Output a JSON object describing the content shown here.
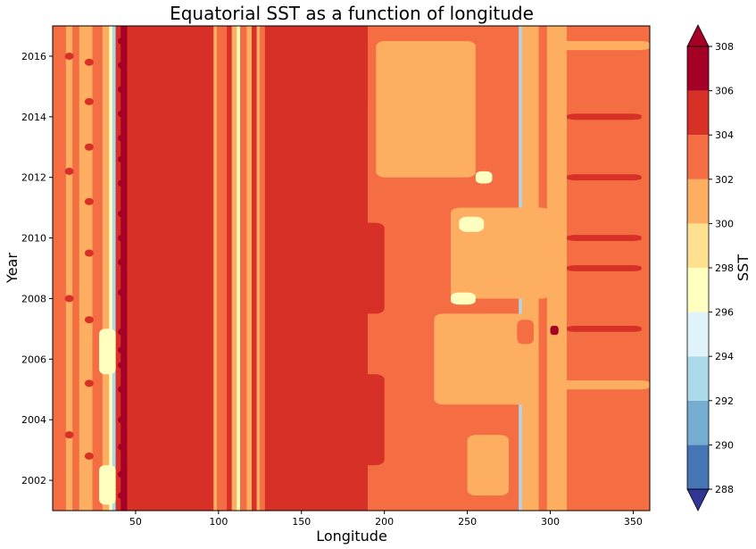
{
  "chart_data": {
    "type": "heatmap",
    "title": "Equatorial SST as a function of longitude",
    "xlabel": "Longitude",
    "ylabel": "Year",
    "xlim": [
      0,
      360
    ],
    "ylim": [
      2001,
      2017
    ],
    "xticks": [
      50,
      100,
      150,
      200,
      250,
      300,
      350
    ],
    "yticks": [
      2002,
      2004,
      2006,
      2008,
      2010,
      2012,
      2014,
      2016
    ],
    "colorbar": {
      "label": "SST",
      "levels": [
        288,
        290,
        292,
        294,
        296,
        298,
        300,
        302,
        304,
        306,
        308
      ],
      "colors": [
        "#313695",
        "#4575b4",
        "#74add1",
        "#abd9e9",
        "#e0f3f8",
        "#ffffbf",
        "#fee090",
        "#fdae61",
        "#f46d43",
        "#d73027",
        "#a50026"
      ],
      "extend": "both"
    },
    "bands": [
      {
        "x0": 0,
        "x1": 8,
        "level": 302
      },
      {
        "x0": 8,
        "x1": 12,
        "level": 300
      },
      {
        "x0": 12,
        "x1": 16,
        "level": 302
      },
      {
        "x0": 16,
        "x1": 24,
        "level": 300
      },
      {
        "x0": 24,
        "x1": 30,
        "level": 302
      },
      {
        "x0": 30,
        "x1": 34,
        "level": 300
      },
      {
        "x0": 34,
        "x1": 36,
        "level": 296
      },
      {
        "x0": 36,
        "x1": 38,
        "level": 292
      },
      {
        "x0": 38,
        "x1": 41,
        "level": 304
      },
      {
        "x0": 41,
        "x1": 45,
        "level": 306
      },
      {
        "x0": 45,
        "x1": 97,
        "level": 304
      },
      {
        "x0": 97,
        "x1": 99,
        "level": 300
      },
      {
        "x0": 99,
        "x1": 105,
        "level": 302
      },
      {
        "x0": 105,
        "x1": 108,
        "level": 304
      },
      {
        "x0": 108,
        "x1": 111,
        "level": 300
      },
      {
        "x0": 111,
        "x1": 113,
        "level": 296
      },
      {
        "x0": 113,
        "x1": 117,
        "level": 302
      },
      {
        "x0": 117,
        "x1": 120,
        "level": 300
      },
      {
        "x0": 120,
        "x1": 123,
        "level": 304
      },
      {
        "x0": 123,
        "x1": 125,
        "level": 300
      },
      {
        "x0": 125,
        "x1": 128,
        "level": 302
      },
      {
        "x0": 128,
        "x1": 190,
        "level": 304
      },
      {
        "x0": 190,
        "x1": 240,
        "level": 302
      },
      {
        "x0": 240,
        "x1": 265,
        "level": 302
      },
      {
        "x0": 265,
        "x1": 281,
        "level": 302
      },
      {
        "x0": 281,
        "x1": 283,
        "level": 292
      },
      {
        "x0": 283,
        "x1": 293,
        "level": 300
      },
      {
        "x0": 293,
        "x1": 298,
        "level": 302
      },
      {
        "x0": 298,
        "x1": 310,
        "level": 300
      },
      {
        "x0": 310,
        "x1": 360,
        "level": 302
      }
    ],
    "patches": [
      {
        "x0": 195,
        "x1": 255,
        "y0": 2012.0,
        "y1": 2016.5,
        "level": 300
      },
      {
        "x0": 240,
        "x1": 300,
        "y0": 2008.0,
        "y1": 2011.0,
        "level": 300
      },
      {
        "x0": 230,
        "x1": 290,
        "y0": 2004.5,
        "y1": 2007.5,
        "level": 300
      },
      {
        "x0": 250,
        "x1": 275,
        "y0": 2001.5,
        "y1": 2003.5,
        "level": 300
      },
      {
        "x0": 245,
        "x1": 260,
        "y0": 2010.2,
        "y1": 2010.7,
        "level": 296
      },
      {
        "x0": 255,
        "x1": 265,
        "y0": 2011.8,
        "y1": 2012.2,
        "level": 296
      },
      {
        "x0": 240,
        "x1": 255,
        "y0": 2007.8,
        "y1": 2008.2,
        "level": 296
      },
      {
        "x0": 160,
        "x1": 190,
        "y0": 2014.2,
        "y1": 2016.8,
        "level": 304
      },
      {
        "x0": 160,
        "x1": 200,
        "y0": 2007.5,
        "y1": 2010.5,
        "level": 304
      },
      {
        "x0": 160,
        "x1": 200,
        "y0": 2002.5,
        "y1": 2005.5,
        "level": 304
      },
      {
        "x0": 310,
        "x1": 355,
        "y0": 2013.9,
        "y1": 2014.1,
        "level": 304
      },
      {
        "x0": 310,
        "x1": 355,
        "y0": 2011.9,
        "y1": 2012.1,
        "level": 304
      },
      {
        "x0": 310,
        "x1": 355,
        "y0": 2009.9,
        "y1": 2010.1,
        "level": 304
      },
      {
        "x0": 310,
        "x1": 355,
        "y0": 2008.9,
        "y1": 2009.1,
        "level": 304
      },
      {
        "x0": 310,
        "x1": 355,
        "y0": 2006.9,
        "y1": 2007.1,
        "level": 304
      },
      {
        "x0": 305,
        "x1": 360,
        "y0": 2016.2,
        "y1": 2016.5,
        "level": 300
      },
      {
        "x0": 305,
        "x1": 360,
        "y0": 2005.0,
        "y1": 2005.3,
        "level": 300
      },
      {
        "x0": 28,
        "x1": 38,
        "y0": 2005.5,
        "y1": 2007.0,
        "level": 296
      },
      {
        "x0": 28,
        "x1": 38,
        "y0": 2001.2,
        "y1": 2002.5,
        "level": 296
      },
      {
        "x0": 280,
        "x1": 290,
        "y0": 2006.5,
        "y1": 2007.3,
        "level": 302
      },
      {
        "x0": 300,
        "x1": 305,
        "y0": 2006.8,
        "y1": 2007.1,
        "level": 306
      }
    ],
    "hotspots": [
      {
        "x": 42,
        "level": 306,
        "years": [
          2001.5,
          2002.2,
          2003.1,
          2004.0,
          2005.0,
          2005.8,
          2006.3,
          2006.9,
          2008.2,
          2009.2,
          2010.0,
          2010.8,
          2011.8,
          2012.6,
          2013.3,
          2014.1,
          2014.9,
          2015.7,
          2016.5
        ]
      },
      {
        "x": 22,
        "level": 304,
        "years": [
          2002.8,
          2005.2,
          2007.3,
          2009.5,
          2011.2,
          2013.0,
          2014.5,
          2015.8
        ]
      },
      {
        "x": 10,
        "level": 304,
        "years": [
          2003.5,
          2008.0,
          2012.2,
          2016.0
        ]
      }
    ]
  }
}
